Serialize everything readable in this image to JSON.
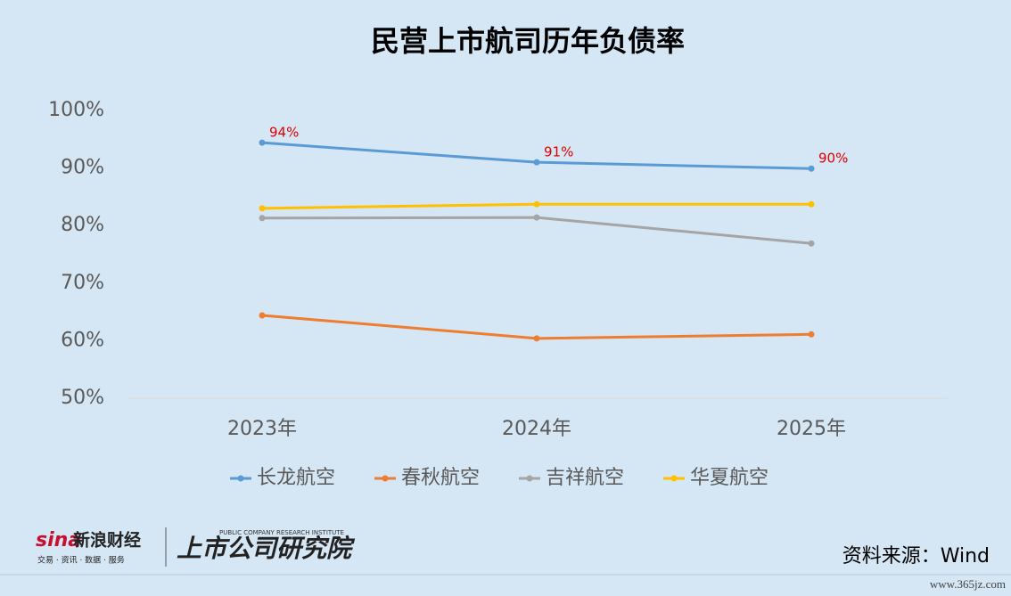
{
  "chart_data": {
    "type": "line",
    "title": "民营上市航司历年负债率",
    "categories": [
      "2023年",
      "2024年",
      "2025年"
    ],
    "series": [
      {
        "name": "长龙航空",
        "color": "#5b9bd5",
        "values": [
          94.4,
          91.0,
          89.9
        ],
        "value_labels": [
          "94%",
          "91%",
          "90%"
        ]
      },
      {
        "name": "春秋航空",
        "color": "#ed7d31",
        "values": [
          64.4,
          60.4,
          61.1
        ]
      },
      {
        "name": "吉祥航空",
        "color": "#a5a5a5",
        "values": [
          81.3,
          81.4,
          76.9
        ]
      },
      {
        "name": "华夏航空",
        "color": "#ffc000",
        "values": [
          83.0,
          83.7,
          83.7
        ]
      }
    ],
    "value_label_color": "#e00000",
    "ylim": [
      50,
      100
    ],
    "yticks": [
      {
        "value": 50,
        "label": "50%"
      },
      {
        "value": 60,
        "label": "60%"
      },
      {
        "value": 70,
        "label": "70%"
      },
      {
        "value": 80,
        "label": "80%"
      },
      {
        "value": 90,
        "label": "90%"
      },
      {
        "value": 100,
        "label": "100%"
      }
    ],
    "grid": false,
    "legend": "bottom"
  },
  "branding": {
    "sina": "sina",
    "sina_cn": "新浪财经",
    "sina_sub": "交易 · 资讯 · 数据 · 服务",
    "institute": "上市公司研究院",
    "institute_en": "PUBLIC COMPANY RESEARCH INSTITUTE",
    "source": "资料来源：Wind",
    "site": "www.365jz.com"
  }
}
